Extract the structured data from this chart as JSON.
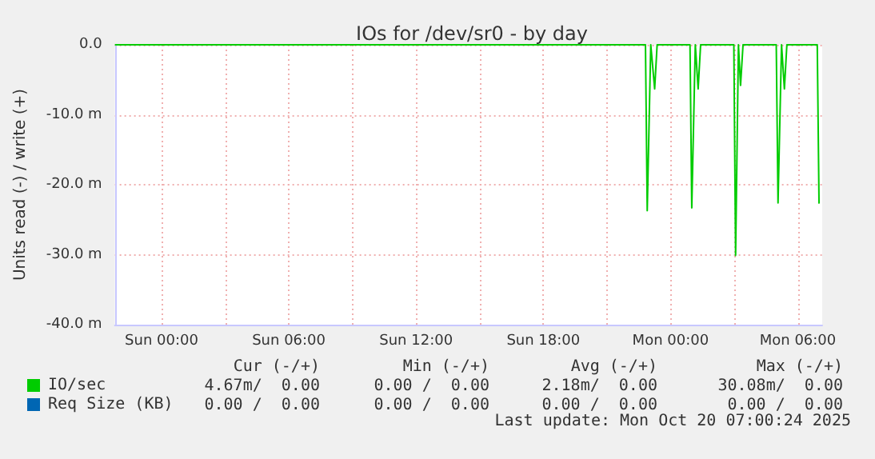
{
  "chart_data": {
    "type": "line",
    "title": "IOs for /dev/sr0 - by day",
    "ylabel": "Units read (-) / write (+)",
    "xlim": [
      "2025-10-18T21:48",
      "2025-10-20T07:09"
    ],
    "ylim": [
      -40,
      0
    ],
    "xticks": [
      {
        "value": "2025-10-19T00:00",
        "label": "Sun 00:00"
      },
      {
        "value": "2025-10-19T03:00",
        "label": null
      },
      {
        "value": "2025-10-19T06:00",
        "label": "Sun 06:00"
      },
      {
        "value": "2025-10-19T09:00",
        "label": null
      },
      {
        "value": "2025-10-19T12:00",
        "label": "Sun 12:00"
      },
      {
        "value": "2025-10-19T15:00",
        "label": null
      },
      {
        "value": "2025-10-19T18:00",
        "label": "Sun 18:00"
      },
      {
        "value": "2025-10-19T21:00",
        "label": null
      },
      {
        "value": "2025-10-20T00:00",
        "label": "Mon 00:00"
      },
      {
        "value": "2025-10-20T03:00",
        "label": null
      },
      {
        "value": "2025-10-20T06:00",
        "label": "Mon 06:00"
      }
    ],
    "yticks": [
      {
        "value": -40,
        "label": "-40.0 m"
      },
      {
        "value": -30,
        "label": "-30.0 m"
      },
      {
        "value": -20,
        "label": "-20.0 m"
      },
      {
        "value": -10,
        "label": "-10.0 m"
      },
      {
        "value": 0,
        "label": "0.0"
      }
    ],
    "grid": true,
    "legend": "bottom left",
    "marker": "none",
    "series": [
      {
        "name": "IO/sec",
        "color": "#00cc00",
        "x": [
          "2025-10-18T21:48",
          "2025-10-19T22:49",
          "2025-10-19T22:54",
          "2025-10-19T23:04",
          "2025-10-19T23:15",
          "2025-10-19T23:22",
          "2025-10-20T00:55",
          "2025-10-20T01:00",
          "2025-10-20T01:10",
          "2025-10-20T01:18",
          "2025-10-20T01:25",
          "2025-10-20T02:59",
          "2025-10-20T03:04",
          "2025-10-20T03:12",
          "2025-10-20T03:18",
          "2025-10-20T03:25",
          "2025-10-20T04:59",
          "2025-10-20T05:04",
          "2025-10-20T05:14",
          "2025-10-20T05:22",
          "2025-10-20T05:29",
          "2025-10-20T06:55",
          "2025-10-20T07:00"
        ],
        "values": [
          0,
          0,
          -23.7,
          0,
          -6.3,
          0,
          0,
          -23.3,
          0,
          -6.3,
          0,
          0,
          -30.1,
          0,
          -5.8,
          0,
          0,
          -22.6,
          0,
          -6.3,
          0,
          0,
          -22.7
        ]
      },
      {
        "name": "Req Size (KB)",
        "color": "#0066b3"
      }
    ],
    "annotations": [
      "Cur (-/+)",
      "Min (-/+)",
      "Avg (-/+)",
      "Max (-/+)",
      "4.67m/  0.00",
      "0.00 /  0.00",
      "2.18m/  0.00",
      "30.08m/  0.00",
      "0.00 /  0.00",
      "0.00 /  0.00",
      "0.00 /  0.00",
      "0.00 /  0.00",
      "Last update: Mon Oct 20 07:00:24 2025"
    ]
  }
}
